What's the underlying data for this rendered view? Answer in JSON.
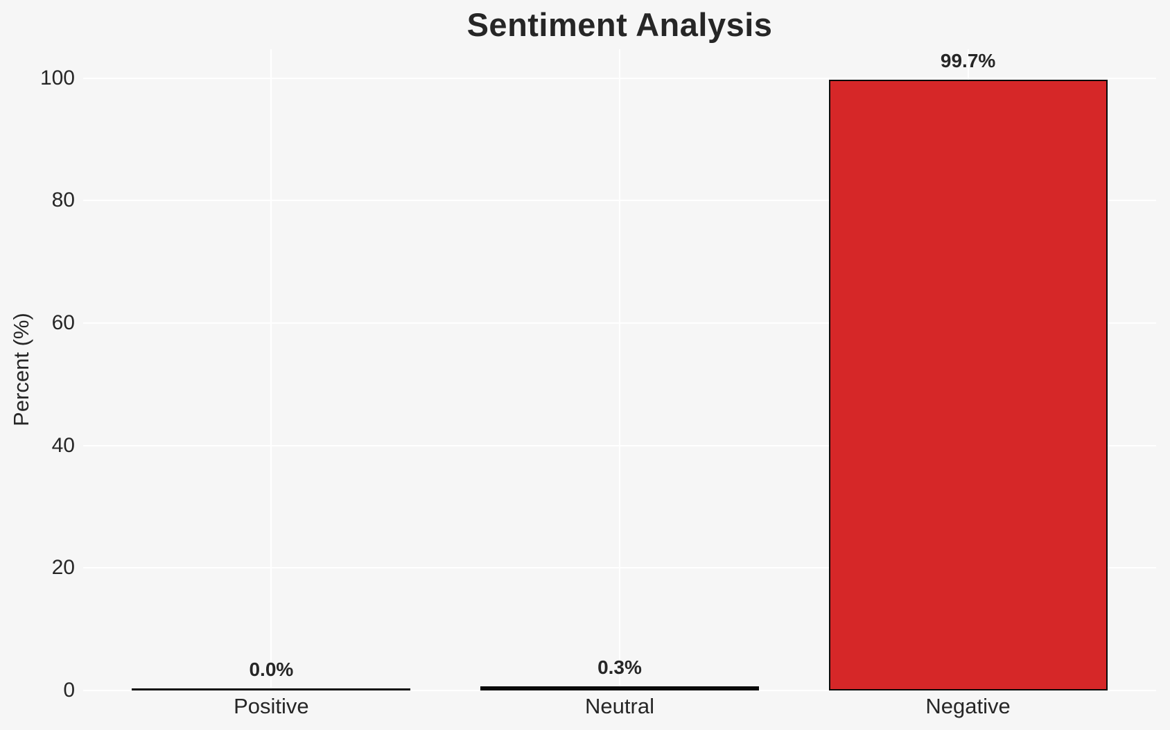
{
  "chart_data": {
    "type": "bar",
    "title": "Sentiment Analysis",
    "ylabel": "Percent (%)",
    "xlabel": "",
    "categories": [
      "Positive",
      "Neutral",
      "Negative"
    ],
    "values": [
      0.0,
      0.3,
      99.7
    ],
    "value_labels": [
      "0.0%",
      "0.3%",
      "99.7%"
    ],
    "yticks": [
      0,
      20,
      40,
      60,
      80,
      100
    ],
    "ylim": [
      0,
      104.7
    ],
    "grid": true,
    "legend": false,
    "bar_width_fraction": 0.8,
    "colors": {
      "bar_fill": "#d62728",
      "bar_edge": "#0a0a0a",
      "background": "#f6f6f6",
      "gridline": "#ffffff",
      "text": "#262626"
    }
  }
}
